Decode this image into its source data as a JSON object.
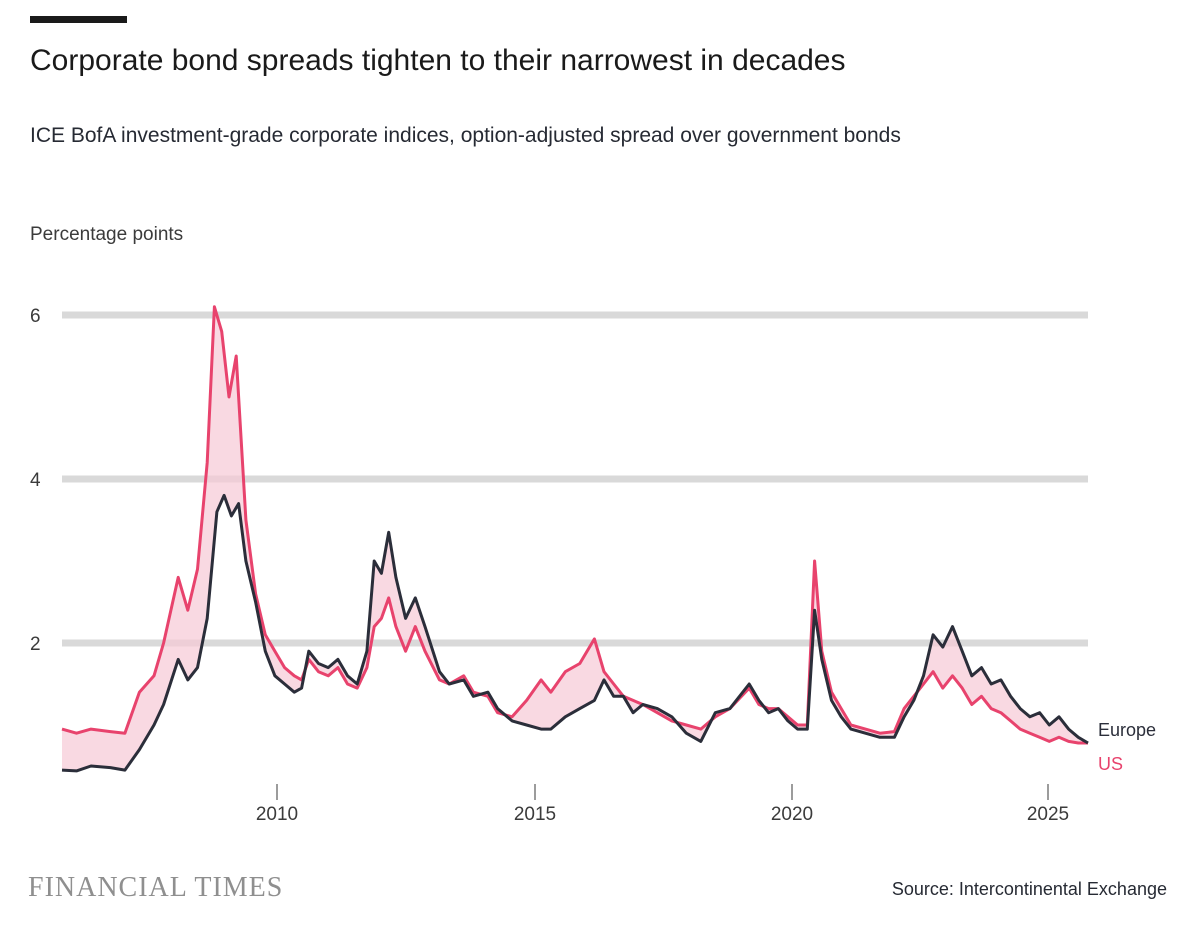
{
  "header": {
    "title": "Corporate bond spreads tighten to their narrowest in decades",
    "subtitle": "ICE BofA investment-grade corporate indices, option-adjusted spread over government bonds",
    "unit_label": "Percentage points"
  },
  "footer": {
    "brand": "FINANCIAL TIMES",
    "source": "Source: Intercontinental Exchange"
  },
  "colors": {
    "europe": "#2b2e3a",
    "us": "#e8436d",
    "us_fill": "#f7c9d5",
    "europe_wide_blue": "#264ea0",
    "europe_wide_teal": "#0f7d67",
    "grid": "#d9d9d9"
  },
  "chart_data": {
    "type": "line",
    "ylim": [
      0,
      6
    ],
    "yticks": [
      2,
      4,
      6
    ],
    "xlim": [
      2005.8,
      2025.9
    ],
    "xticks": [
      2010,
      2015,
      2020,
      2025
    ],
    "series": [
      {
        "name": "Europe",
        "color": "#2b2e3a",
        "points": [
          [
            2006.0,
            0.45
          ],
          [
            2006.3,
            0.44
          ],
          [
            2006.6,
            0.5
          ],
          [
            2007.0,
            0.48
          ],
          [
            2007.3,
            0.45
          ],
          [
            2007.6,
            0.7
          ],
          [
            2007.9,
            1.0
          ],
          [
            2008.1,
            1.25
          ],
          [
            2008.4,
            1.8
          ],
          [
            2008.6,
            1.55
          ],
          [
            2008.8,
            1.7
          ],
          [
            2009.0,
            2.3
          ],
          [
            2009.2,
            3.6
          ],
          [
            2009.35,
            3.8
          ],
          [
            2009.5,
            3.55
          ],
          [
            2009.65,
            3.7
          ],
          [
            2009.8,
            3.0
          ],
          [
            2010.0,
            2.5
          ],
          [
            2010.2,
            1.9
          ],
          [
            2010.4,
            1.6
          ],
          [
            2010.6,
            1.5
          ],
          [
            2010.8,
            1.4
          ],
          [
            2010.95,
            1.45
          ],
          [
            2011.1,
            1.9
          ],
          [
            2011.3,
            1.75
          ],
          [
            2011.5,
            1.7
          ],
          [
            2011.7,
            1.8
          ],
          [
            2011.9,
            1.6
          ],
          [
            2012.1,
            1.5
          ],
          [
            2012.3,
            1.9
          ],
          [
            2012.45,
            3.0
          ],
          [
            2012.6,
            2.85
          ],
          [
            2012.75,
            3.35
          ],
          [
            2012.9,
            2.8
          ],
          [
            2013.1,
            2.3
          ],
          [
            2013.3,
            2.55
          ],
          [
            2013.5,
            2.2
          ],
          [
            2013.8,
            1.65
          ],
          [
            2014.0,
            1.5
          ],
          [
            2014.3,
            1.55
          ],
          [
            2014.5,
            1.35
          ],
          [
            2014.8,
            1.4
          ],
          [
            2015.0,
            1.2
          ],
          [
            2015.3,
            1.05
          ],
          [
            2015.6,
            1.0
          ],
          [
            2015.9,
            0.95
          ],
          [
            2016.1,
            0.95
          ],
          [
            2016.4,
            1.1
          ],
          [
            2016.7,
            1.2
          ],
          [
            2017.0,
            1.3
          ],
          [
            2017.2,
            1.55
          ],
          [
            2017.4,
            1.35
          ],
          [
            2017.6,
            1.35
          ],
          [
            2017.8,
            1.15
          ],
          [
            2018.0,
            1.25
          ],
          [
            2018.3,
            1.2
          ],
          [
            2018.6,
            1.1
          ],
          [
            2018.9,
            0.9
          ],
          [
            2019.2,
            0.8
          ],
          [
            2019.5,
            1.15
          ],
          [
            2019.8,
            1.2
          ],
          [
            2020.2,
            1.5
          ],
          [
            2020.4,
            1.3
          ],
          [
            2020.6,
            1.15
          ],
          [
            2020.8,
            1.2
          ],
          [
            2021.0,
            1.05
          ],
          [
            2021.2,
            0.95
          ],
          [
            2021.4,
            0.95
          ],
          [
            2021.55,
            2.4
          ],
          [
            2021.7,
            1.8
          ],
          [
            2021.9,
            1.3
          ],
          [
            2022.1,
            1.1
          ],
          [
            2022.3,
            0.95
          ],
          [
            2022.6,
            0.9
          ],
          [
            2022.9,
            0.85
          ],
          [
            2023.2,
            0.85
          ],
          [
            2023.4,
            1.1
          ],
          [
            2023.6,
            1.3
          ],
          [
            2023.8,
            1.6
          ],
          [
            2024.0,
            2.1
          ],
          [
            2024.2,
            1.95
          ],
          [
            2024.4,
            2.2
          ],
          [
            2024.6,
            1.9
          ],
          [
            2024.8,
            1.6
          ],
          [
            2025.0,
            1.7
          ],
          [
            2025.2,
            1.5
          ],
          [
            2025.4,
            1.55
          ],
          [
            2025.6,
            1.35
          ],
          [
            2025.8,
            1.2
          ],
          [
            2026.0,
            1.1
          ],
          [
            2026.2,
            1.15
          ],
          [
            2026.4,
            1.0
          ],
          [
            2026.6,
            1.1
          ],
          [
            2026.8,
            0.95
          ],
          [
            2027.0,
            0.85
          ],
          [
            2027.2,
            0.78
          ]
        ]
      },
      {
        "name": "US",
        "color": "#e8436d",
        "points": [
          [
            2006.0,
            0.95
          ],
          [
            2006.3,
            0.9
          ],
          [
            2006.6,
            0.95
          ],
          [
            2007.0,
            0.92
          ],
          [
            2007.3,
            0.9
          ],
          [
            2007.6,
            1.4
          ],
          [
            2007.9,
            1.6
          ],
          [
            2008.1,
            2.0
          ],
          [
            2008.4,
            2.8
          ],
          [
            2008.6,
            2.4
          ],
          [
            2008.8,
            2.9
          ],
          [
            2009.0,
            4.2
          ],
          [
            2009.15,
            6.1
          ],
          [
            2009.3,
            5.8
          ],
          [
            2009.45,
            5.0
          ],
          [
            2009.6,
            5.5
          ],
          [
            2009.8,
            3.5
          ],
          [
            2010.0,
            2.6
          ],
          [
            2010.2,
            2.1
          ],
          [
            2010.4,
            1.9
          ],
          [
            2010.6,
            1.7
          ],
          [
            2010.8,
            1.6
          ],
          [
            2010.95,
            1.55
          ],
          [
            2011.1,
            1.8
          ],
          [
            2011.3,
            1.65
          ],
          [
            2011.5,
            1.6
          ],
          [
            2011.7,
            1.7
          ],
          [
            2011.9,
            1.5
          ],
          [
            2012.1,
            1.45
          ],
          [
            2012.3,
            1.7
          ],
          [
            2012.45,
            2.2
          ],
          [
            2012.6,
            2.3
          ],
          [
            2012.75,
            2.55
          ],
          [
            2012.9,
            2.2
          ],
          [
            2013.1,
            1.9
          ],
          [
            2013.3,
            2.2
          ],
          [
            2013.5,
            1.9
          ],
          [
            2013.8,
            1.55
          ],
          [
            2014.0,
            1.5
          ],
          [
            2014.3,
            1.6
          ],
          [
            2014.5,
            1.4
          ],
          [
            2014.8,
            1.35
          ],
          [
            2015.0,
            1.15
          ],
          [
            2015.3,
            1.1
          ],
          [
            2015.6,
            1.3
          ],
          [
            2015.9,
            1.55
          ],
          [
            2016.1,
            1.4
          ],
          [
            2016.4,
            1.65
          ],
          [
            2016.7,
            1.75
          ],
          [
            2017.0,
            2.05
          ],
          [
            2017.2,
            1.65
          ],
          [
            2017.4,
            1.5
          ],
          [
            2017.6,
            1.35
          ],
          [
            2017.8,
            1.3
          ],
          [
            2018.0,
            1.25
          ],
          [
            2018.3,
            1.15
          ],
          [
            2018.6,
            1.05
          ],
          [
            2018.9,
            1.0
          ],
          [
            2019.2,
            0.95
          ],
          [
            2019.5,
            1.1
          ],
          [
            2019.8,
            1.2
          ],
          [
            2020.2,
            1.45
          ],
          [
            2020.4,
            1.25
          ],
          [
            2020.6,
            1.2
          ],
          [
            2020.8,
            1.2
          ],
          [
            2021.0,
            1.1
          ],
          [
            2021.2,
            1.0
          ],
          [
            2021.4,
            1.0
          ],
          [
            2021.55,
            3.0
          ],
          [
            2021.7,
            1.9
          ],
          [
            2021.9,
            1.4
          ],
          [
            2022.1,
            1.2
          ],
          [
            2022.3,
            1.0
          ],
          [
            2022.6,
            0.95
          ],
          [
            2022.9,
            0.9
          ],
          [
            2023.2,
            0.92
          ],
          [
            2023.4,
            1.2
          ],
          [
            2023.6,
            1.35
          ],
          [
            2023.8,
            1.5
          ],
          [
            2024.0,
            1.65
          ],
          [
            2024.2,
            1.45
          ],
          [
            2024.4,
            1.6
          ],
          [
            2024.6,
            1.45
          ],
          [
            2024.8,
            1.25
          ],
          [
            2025.0,
            1.35
          ],
          [
            2025.2,
            1.2
          ],
          [
            2025.4,
            1.15
          ],
          [
            2025.6,
            1.05
          ],
          [
            2025.8,
            0.95
          ],
          [
            2026.0,
            0.9
          ],
          [
            2026.2,
            0.85
          ],
          [
            2026.4,
            0.8
          ],
          [
            2026.6,
            0.85
          ],
          [
            2026.8,
            0.8
          ],
          [
            2027.0,
            0.78
          ],
          [
            2027.2,
            0.78
          ]
        ]
      }
    ],
    "legend_labels": [
      "Europe",
      "US"
    ],
    "legend_position": "right-end-of-lines",
    "grid": true
  }
}
